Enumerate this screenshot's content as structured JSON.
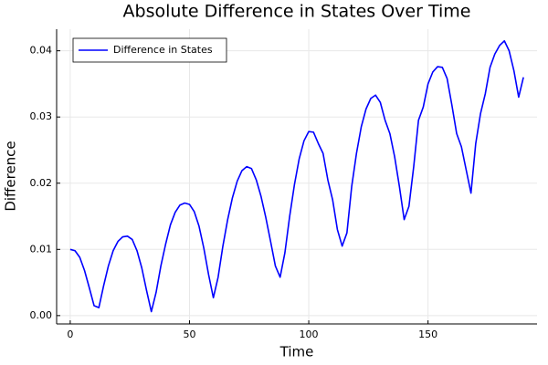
{
  "chart_data": {
    "type": "line",
    "title": "Absolute Difference in States Over Time",
    "xlabel": "Time",
    "ylabel": "Difference",
    "x": [
      0,
      2,
      4,
      6,
      8,
      10,
      12,
      14,
      16,
      18,
      20,
      22,
      24,
      26,
      28,
      30,
      32,
      34,
      36,
      38,
      40,
      42,
      44,
      46,
      48,
      50,
      52,
      54,
      56,
      58,
      60,
      62,
      64,
      66,
      68,
      70,
      72,
      74,
      76,
      78,
      80,
      82,
      84,
      86,
      88,
      90,
      92,
      94,
      96,
      98,
      100,
      102,
      104,
      106,
      108,
      110,
      112,
      114,
      116,
      118,
      120,
      122,
      124,
      126,
      128,
      130,
      132,
      134,
      136,
      138,
      140,
      142,
      144,
      146,
      148,
      150,
      152,
      154,
      156,
      158,
      160,
      162,
      164,
      166,
      168,
      170,
      172,
      174,
      176,
      178,
      180,
      182,
      184,
      186,
      188,
      190
    ],
    "series": [
      {
        "name": "Difference in States",
        "color": "#0000ff",
        "values": [
          0.01,
          0.0098,
          0.0088,
          0.0068,
          0.0042,
          0.0015,
          0.0012,
          0.0045,
          0.0075,
          0.0098,
          0.0112,
          0.0119,
          0.012,
          0.0115,
          0.0098,
          0.0072,
          0.0038,
          0.0006,
          0.0035,
          0.0075,
          0.0108,
          0.0137,
          0.0156,
          0.0167,
          0.017,
          0.0168,
          0.0157,
          0.0135,
          0.0102,
          0.0062,
          0.0027,
          0.0058,
          0.0105,
          0.0145,
          0.0178,
          0.0203,
          0.0219,
          0.0225,
          0.0222,
          0.0205,
          0.018,
          0.0148,
          0.0112,
          0.0075,
          0.0058,
          0.0095,
          0.015,
          0.0198,
          0.0237,
          0.0264,
          0.0278,
          0.0277,
          0.026,
          0.0245,
          0.0205,
          0.0175,
          0.013,
          0.0105,
          0.0125,
          0.0195,
          0.0245,
          0.0285,
          0.0312,
          0.0328,
          0.0333,
          0.0322,
          0.0295,
          0.0275,
          0.024,
          0.0195,
          0.0145,
          0.0165,
          0.0225,
          0.0295,
          0.0315,
          0.035,
          0.0368,
          0.0376,
          0.0375,
          0.0358,
          0.0318,
          0.0275,
          0.0255,
          0.022,
          0.0185,
          0.026,
          0.0305,
          0.0335,
          0.0375,
          0.0395,
          0.0408,
          0.0415,
          0.04,
          0.037,
          0.033,
          0.036
        ]
      }
    ],
    "xlim": [
      -5.7,
      195.7
    ],
    "ylim": [
      -0.00126,
      0.04326
    ],
    "xticks": [
      0,
      50,
      100,
      150
    ],
    "yticks": [
      {
        "value": 0,
        "label": "0.00"
      },
      0.01,
      0.02,
      0.03,
      0.04
    ],
    "grid": true,
    "legend": "top-left"
  }
}
